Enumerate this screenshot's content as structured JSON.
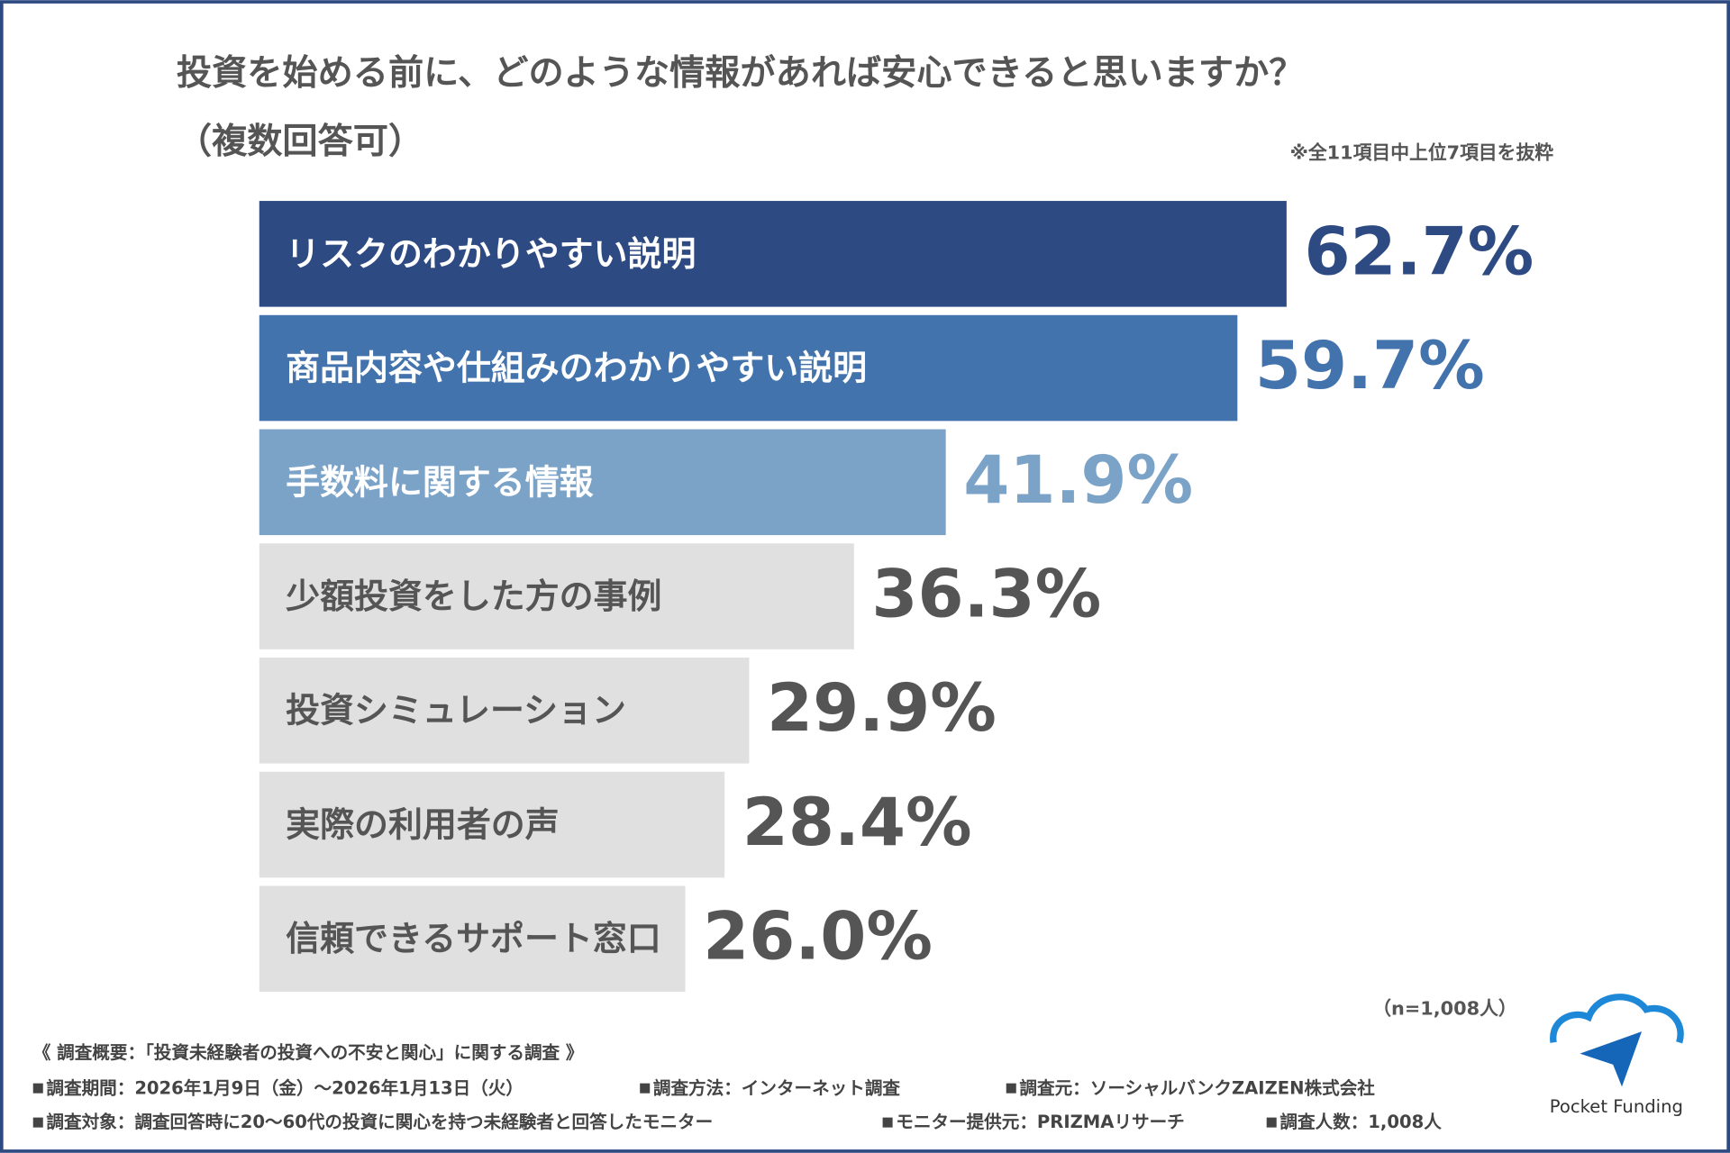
{
  "chart_data": {
    "type": "bar",
    "orientation": "horizontal",
    "title": "投資を始める前に、どのような情報があれば安心できると思いますか？",
    "subtitle": "（複数回答可）",
    "note": "※全11項目中上位7項目を抜粋",
    "sample_size": "（n=1,008人）",
    "categories": [
      "リスクのわかりやすい説明",
      "商品内容や仕組みのわかりやすい説明",
      "手数料に関する情報",
      "少額投資をした方の事例",
      "投資シミュレーション",
      "実際の利用者の声",
      "信頼できるサポート窓口"
    ],
    "values": [
      62.7,
      59.7,
      41.9,
      36.3,
      29.9,
      28.4,
      26.0
    ],
    "value_labels": [
      "62.7%",
      "59.7%",
      "41.9%",
      "36.3%",
      "29.9%",
      "28.4%",
      "26.0%"
    ],
    "colors": [
      "#2d4a83",
      "#4373ad",
      "#7ba3c8",
      "#e0e0e0",
      "#e0e0e0",
      "#e0e0e0",
      "#e0e0e0"
    ]
  },
  "footer": {
    "heading": "《 調査概要：「投資未経験者の投資への不安と関心」に関する調査 》",
    "items": [
      [
        "調査期間：2026年1月9日（金）～2026年1月13日（火）",
        "調査方法：インターネット調査",
        "調査元：ソーシャルバンクZAIZEN株式会社"
      ],
      [
        "調査対象：調査回答時に20～60代の投資に関心を持つ未経験者と回答したモニター",
        "モニター提供元：PRIZMAリサーチ",
        "調査人数：1,008人"
      ]
    ]
  },
  "logo": "Pocket Funding"
}
